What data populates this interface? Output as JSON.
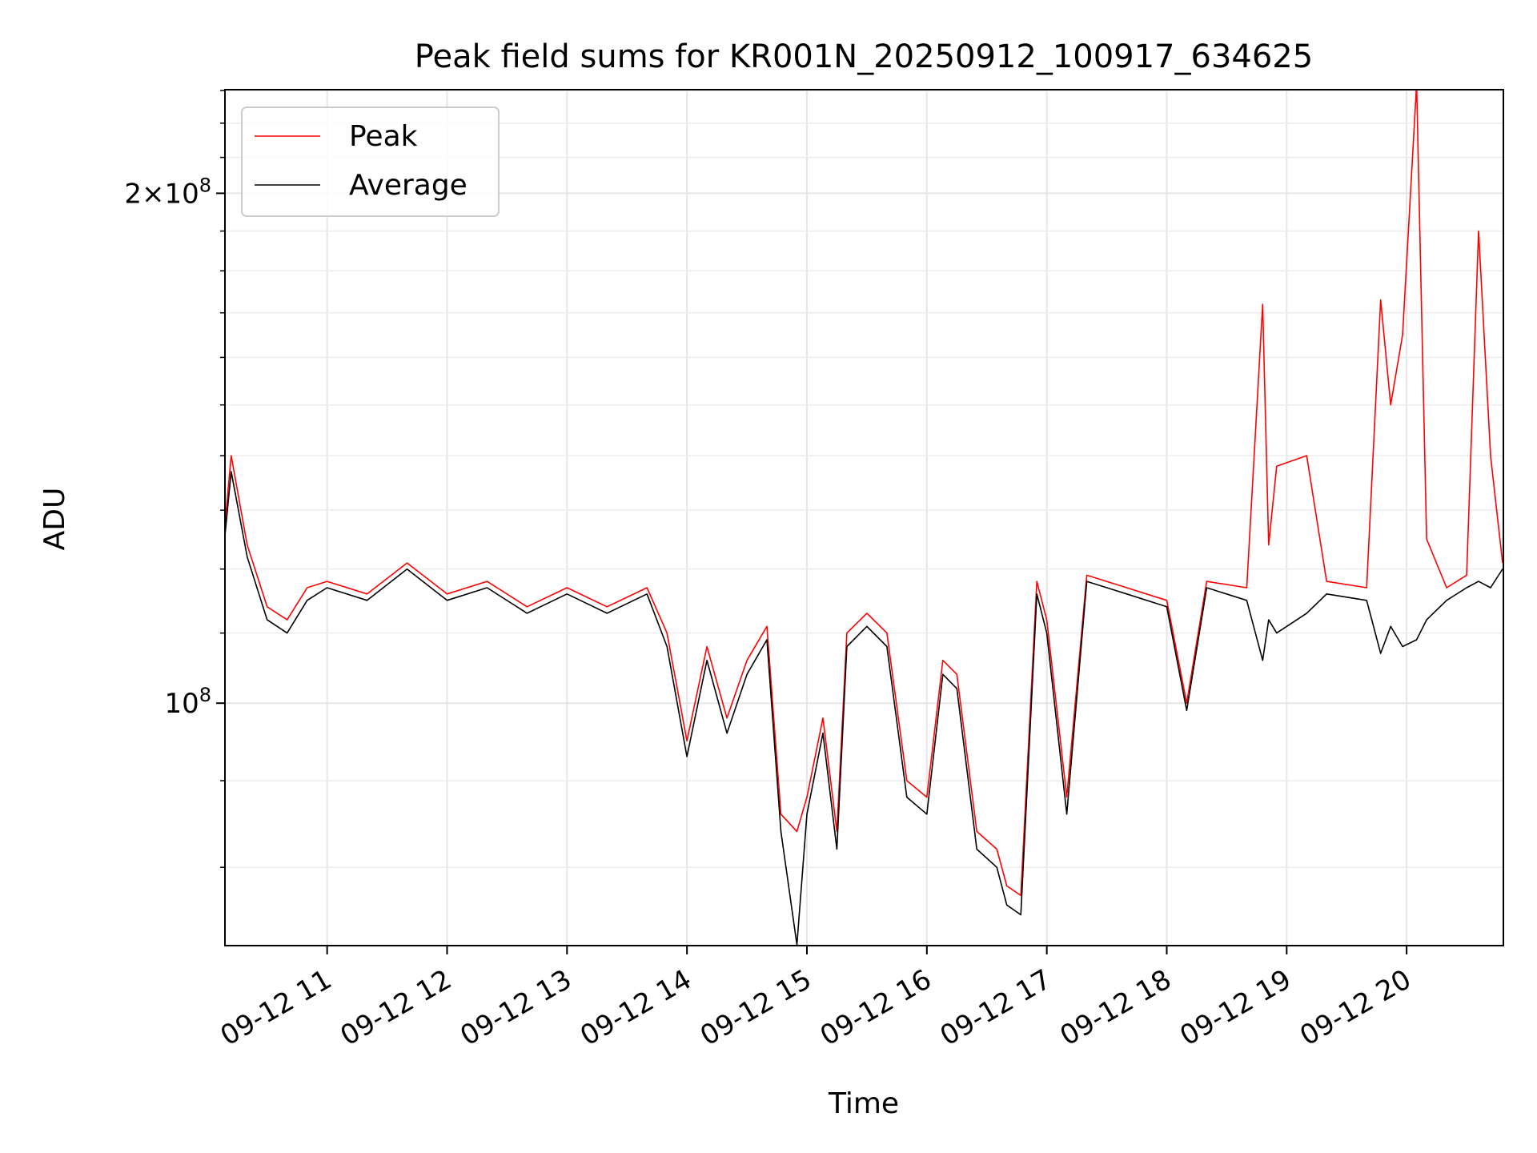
{
  "chart_data": {
    "type": "line",
    "title": "Peak field sums for KR001N_20250912_100917_634625",
    "xlabel": "Time",
    "ylabel": "ADU",
    "yscale": "log",
    "xlim": [
      "2025-09-12 10:09:17",
      "2025-09-12 20:48:00"
    ],
    "ylim": [
      72000000,
      230000000
    ],
    "grid": true,
    "legend_position": "top-left",
    "x_tick_labels": [
      "09-12 11",
      "09-12 12",
      "09-12 13",
      "09-12 14",
      "09-12 15",
      "09-12 16",
      "09-12 17",
      "09-12 18",
      "09-12 19",
      "09-12 20"
    ],
    "x_tick_times": [
      "2025-09-12 11:00",
      "2025-09-12 12:00",
      "2025-09-12 13:00",
      "2025-09-12 14:00",
      "2025-09-12 15:00",
      "2025-09-12 16:00",
      "2025-09-12 17:00",
      "2025-09-12 18:00",
      "2025-09-12 19:00",
      "2025-09-12 20:00"
    ],
    "y_ticks": [
      {
        "value": 100000000,
        "mantissa": "",
        "exponent": "8"
      },
      {
        "value": 200000000,
        "mantissa": "2",
        "exponent": "8"
      }
    ],
    "series": [
      {
        "name": "Peak",
        "color": "#ff0000",
        "x": [
          "2025-09-12 10:09",
          "2025-09-12 10:12",
          "2025-09-12 10:20",
          "2025-09-12 10:30",
          "2025-09-12 10:40",
          "2025-09-12 10:50",
          "2025-09-12 11:00",
          "2025-09-12 11:20",
          "2025-09-12 11:40",
          "2025-09-12 12:00",
          "2025-09-12 12:20",
          "2025-09-12 12:40",
          "2025-09-12 13:00",
          "2025-09-12 13:20",
          "2025-09-12 13:40",
          "2025-09-12 13:50",
          "2025-09-12 14:00",
          "2025-09-12 14:10",
          "2025-09-12 14:20",
          "2025-09-12 14:30",
          "2025-09-12 14:40",
          "2025-09-12 14:47",
          "2025-09-12 14:55",
          "2025-09-12 15:00",
          "2025-09-12 15:08",
          "2025-09-12 15:15",
          "2025-09-12 15:20",
          "2025-09-12 15:30",
          "2025-09-12 15:40",
          "2025-09-12 15:50",
          "2025-09-12 16:00",
          "2025-09-12 16:08",
          "2025-09-12 16:15",
          "2025-09-12 16:25",
          "2025-09-12 16:35",
          "2025-09-12 16:40",
          "2025-09-12 16:47",
          "2025-09-12 16:55",
          "2025-09-12 17:00",
          "2025-09-12 17:10",
          "2025-09-12 17:20",
          "2025-09-12 17:40",
          "2025-09-12 18:00",
          "2025-09-12 18:10",
          "2025-09-12 18:20",
          "2025-09-12 18:40",
          "2025-09-12 18:48",
          "2025-09-12 18:51",
          "2025-09-12 18:55",
          "2025-09-12 19:10",
          "2025-09-12 19:20",
          "2025-09-12 19:40",
          "2025-09-12 19:47",
          "2025-09-12 19:52",
          "2025-09-12 19:58",
          "2025-09-12 20:05",
          "2025-09-12 20:10",
          "2025-09-12 20:20",
          "2025-09-12 20:30",
          "2025-09-12 20:36",
          "2025-09-12 20:42",
          "2025-09-12 20:48"
        ],
        "values": [
          128000000,
          140000000,
          124000000,
          114000000,
          112000000,
          117000000,
          118000000,
          116000000,
          121000000,
          116000000,
          118000000,
          114000000,
          117000000,
          114000000,
          117000000,
          110000000,
          95000000,
          108000000,
          98000000,
          106000000,
          111000000,
          86000000,
          84000000,
          88000000,
          98000000,
          84000000,
          110000000,
          113000000,
          110000000,
          90000000,
          88000000,
          106000000,
          104000000,
          84000000,
          82000000,
          78000000,
          77000000,
          118000000,
          112000000,
          88000000,
          119000000,
          117000000,
          115000000,
          100000000,
          118000000,
          117000000,
          172000000,
          124000000,
          138000000,
          140000000,
          118000000,
          117000000,
          173000000,
          150000000,
          165000000,
          232000000,
          125000000,
          117000000,
          119000000,
          190000000,
          140000000,
          121000000
        ]
      },
      {
        "name": "Average",
        "color": "#000000",
        "x": [
          "2025-09-12 10:09",
          "2025-09-12 10:12",
          "2025-09-12 10:20",
          "2025-09-12 10:30",
          "2025-09-12 10:40",
          "2025-09-12 10:50",
          "2025-09-12 11:00",
          "2025-09-12 11:20",
          "2025-09-12 11:40",
          "2025-09-12 12:00",
          "2025-09-12 12:20",
          "2025-09-12 12:40",
          "2025-09-12 13:00",
          "2025-09-12 13:20",
          "2025-09-12 13:40",
          "2025-09-12 13:50",
          "2025-09-12 14:00",
          "2025-09-12 14:10",
          "2025-09-12 14:20",
          "2025-09-12 14:30",
          "2025-09-12 14:40",
          "2025-09-12 14:47",
          "2025-09-12 14:55",
          "2025-09-12 15:00",
          "2025-09-12 15:08",
          "2025-09-12 15:15",
          "2025-09-12 15:20",
          "2025-09-12 15:30",
          "2025-09-12 15:40",
          "2025-09-12 15:50",
          "2025-09-12 16:00",
          "2025-09-12 16:08",
          "2025-09-12 16:15",
          "2025-09-12 16:25",
          "2025-09-12 16:35",
          "2025-09-12 16:40",
          "2025-09-12 16:47",
          "2025-09-12 16:55",
          "2025-09-12 17:00",
          "2025-09-12 17:10",
          "2025-09-12 17:20",
          "2025-09-12 17:40",
          "2025-09-12 18:00",
          "2025-09-12 18:10",
          "2025-09-12 18:20",
          "2025-09-12 18:40",
          "2025-09-12 18:48",
          "2025-09-12 18:51",
          "2025-09-12 18:55",
          "2025-09-12 19:10",
          "2025-09-12 19:20",
          "2025-09-12 19:40",
          "2025-09-12 19:47",
          "2025-09-12 19:52",
          "2025-09-12 19:58",
          "2025-09-12 20:05",
          "2025-09-12 20:10",
          "2025-09-12 20:20",
          "2025-09-12 20:30",
          "2025-09-12 20:36",
          "2025-09-12 20:42",
          "2025-09-12 20:48"
        ],
        "values": [
          126000000,
          137000000,
          122000000,
          112000000,
          110000000,
          115000000,
          117000000,
          115000000,
          120000000,
          115000000,
          117000000,
          113000000,
          116000000,
          113000000,
          116000000,
          108000000,
          93000000,
          106000000,
          96000000,
          104000000,
          109000000,
          84000000,
          72000000,
          86000000,
          96000000,
          82000000,
          108000000,
          111000000,
          108000000,
          88000000,
          86000000,
          104000000,
          102000000,
          82000000,
          80000000,
          76000000,
          75000000,
          116000000,
          110000000,
          86000000,
          118000000,
          116000000,
          114000000,
          99000000,
          117000000,
          115000000,
          106000000,
          112000000,
          110000000,
          113000000,
          116000000,
          115000000,
          107000000,
          111000000,
          108000000,
          109000000,
          112000000,
          115000000,
          117000000,
          118000000,
          117000000,
          120000000
        ]
      }
    ]
  }
}
